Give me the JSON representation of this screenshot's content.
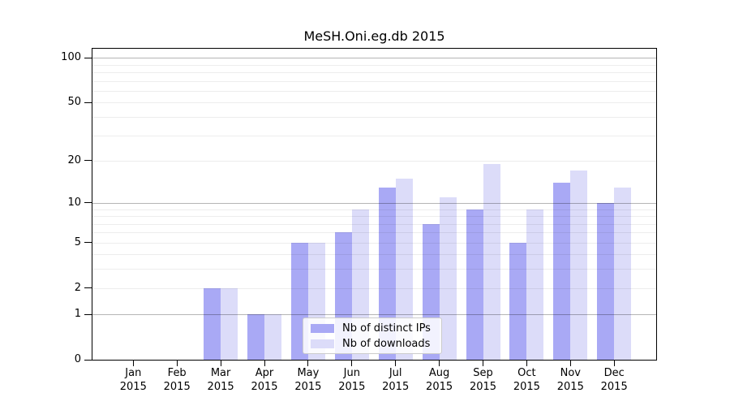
{
  "figure": {
    "background": "#ffffff"
  },
  "chart_data": {
    "type": "bar",
    "title": "MeSH.Oni.eg.db 2015",
    "x_axis": {
      "categories": [
        {
          "month": "Jan",
          "year": "2015"
        },
        {
          "month": "Feb",
          "year": "2015"
        },
        {
          "month": "Mar",
          "year": "2015"
        },
        {
          "month": "Apr",
          "year": "2015"
        },
        {
          "month": "May",
          "year": "2015"
        },
        {
          "month": "Jun",
          "year": "2015"
        },
        {
          "month": "Jul",
          "year": "2015"
        },
        {
          "month": "Aug",
          "year": "2015"
        },
        {
          "month": "Sep",
          "year": "2015"
        },
        {
          "month": "Oct",
          "year": "2015"
        },
        {
          "month": "Nov",
          "year": "2015"
        },
        {
          "month": "Dec",
          "year": "2015"
        }
      ]
    },
    "y_axis": {
      "scale": "log1p",
      "ticks": [
        0,
        1,
        2,
        5,
        10,
        20,
        50,
        100
      ],
      "major_gridlines": [
        1,
        10,
        100
      ],
      "minor_gridlines": [
        2,
        3,
        4,
        5,
        6,
        7,
        8,
        9,
        20,
        30,
        40,
        50,
        60,
        70,
        80,
        90
      ],
      "ylim": [
        0,
        117
      ],
      "grid": true
    },
    "series": [
      {
        "name": "Nb of distinct IPs",
        "color": "#a9a9f5",
        "values": [
          0,
          0,
          2,
          1,
          5,
          6,
          13,
          7,
          9,
          5,
          14,
          10
        ]
      },
      {
        "name": "Nb of downloads",
        "color": "#dcdcf9",
        "values": [
          0,
          0,
          2,
          1,
          5,
          9,
          15,
          11,
          19,
          9,
          17,
          13
        ]
      }
    ],
    "legend": {
      "position": "bottom-center",
      "entries": [
        "Nb of distinct IPs",
        "Nb of downloads"
      ]
    }
  }
}
